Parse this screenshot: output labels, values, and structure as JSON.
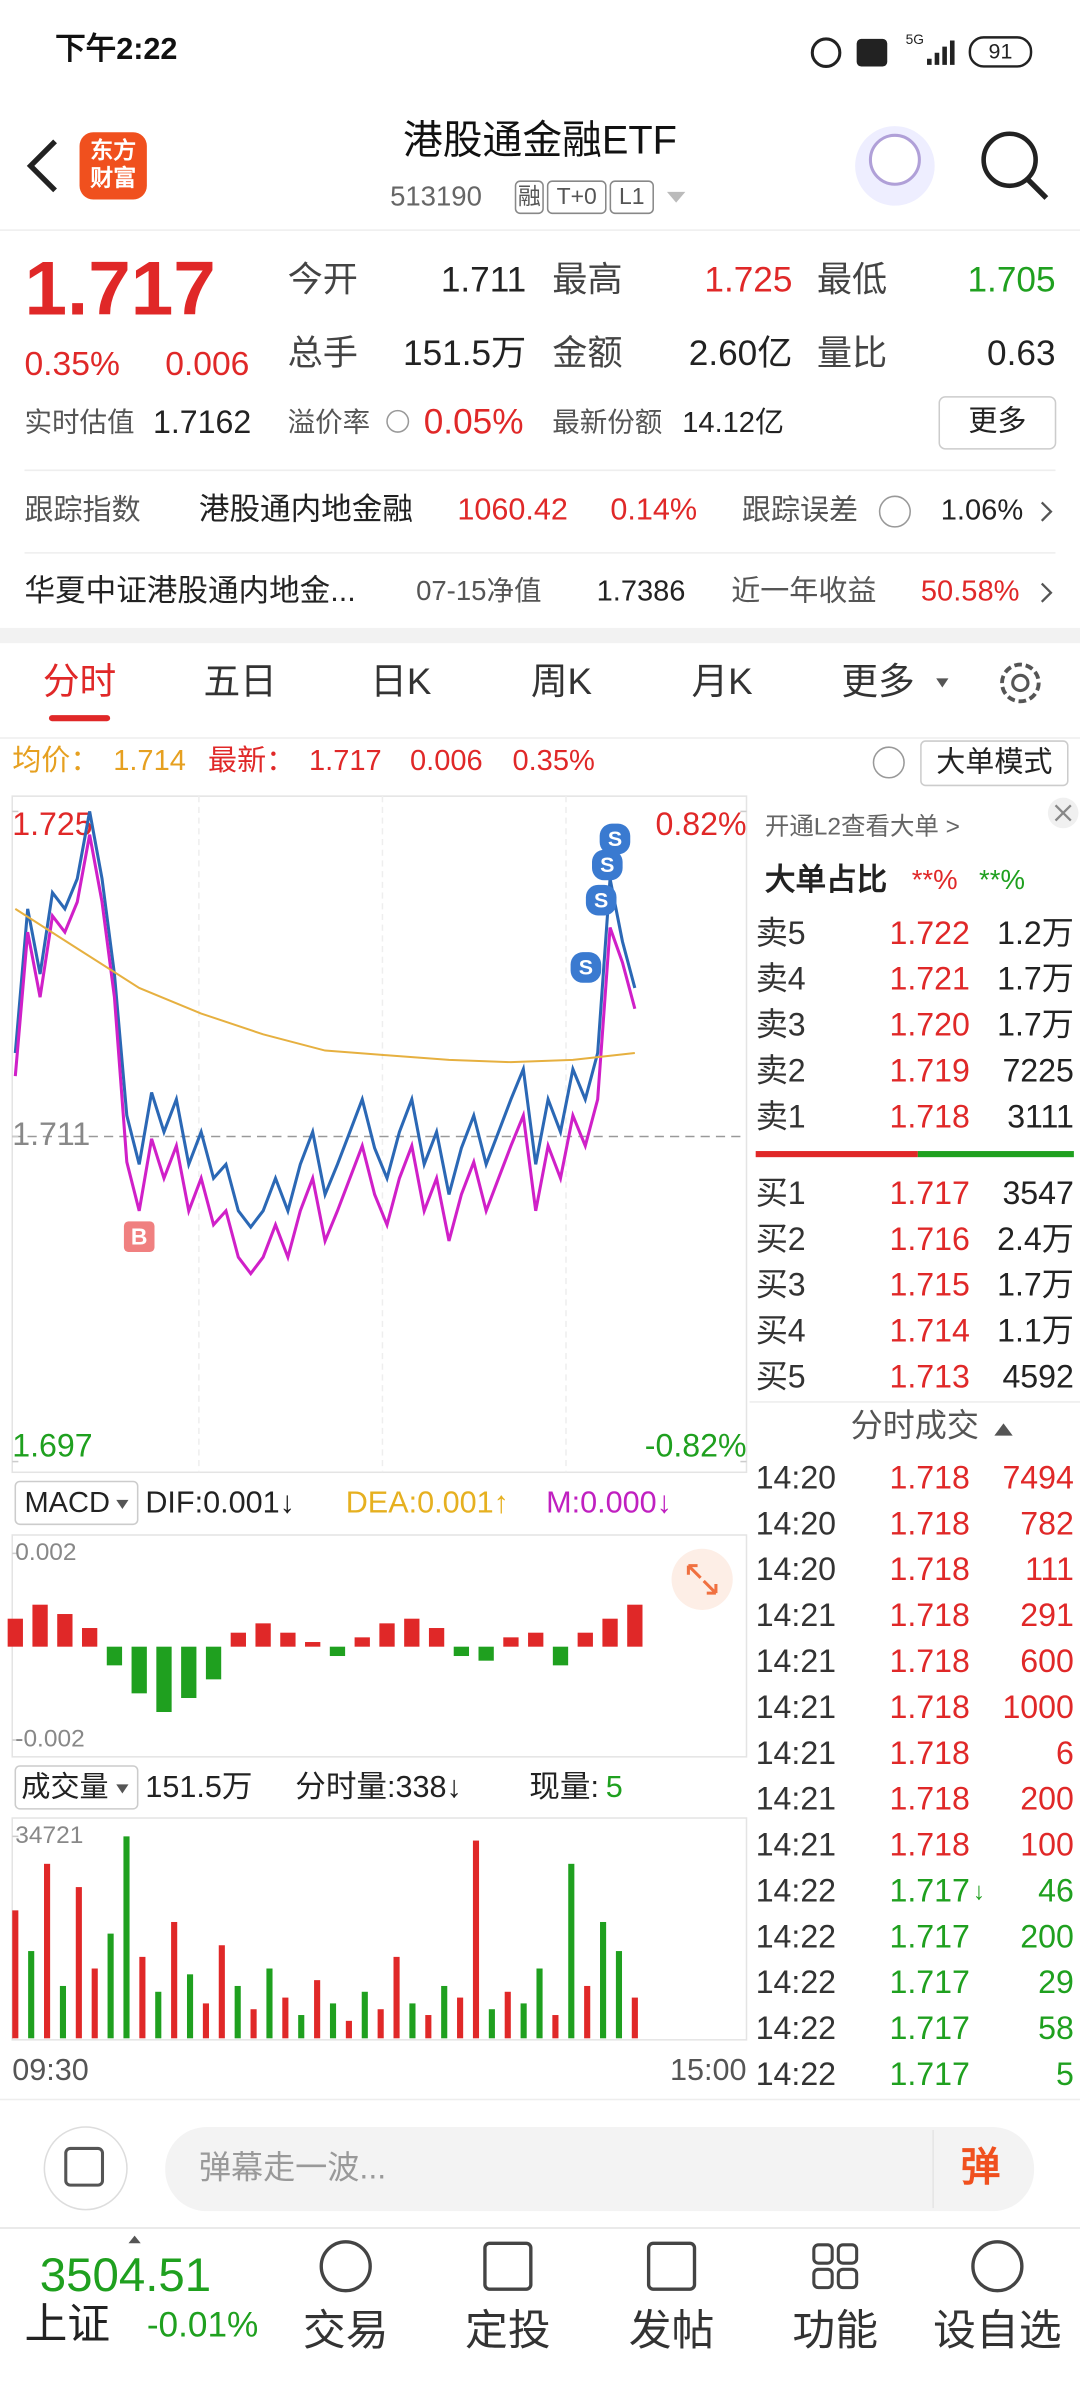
{
  "status": {
    "time": "下午2:22",
    "network": "5G",
    "battery": "91"
  },
  "header": {
    "logo": [
      "东方",
      "财富"
    ],
    "title": "港股通金融ETF",
    "code": "513190",
    "tags": [
      "融",
      "T+0",
      "L1"
    ]
  },
  "quote": {
    "price": "1.717",
    "change_pct": "0.35%",
    "change": "0.006",
    "fields": [
      {
        "label": "今开",
        "value": "1.711"
      },
      {
        "label": "最高",
        "value": "1.725"
      },
      {
        "label": "最低",
        "value": "1.705"
      },
      {
        "label": "总手",
        "value": "151.5万"
      },
      {
        "label": "金额",
        "value": "2.60亿"
      },
      {
        "label": "量比",
        "value": "0.63"
      }
    ],
    "est_label": "实时估值",
    "est": "1.7162",
    "premium_label": "溢价率",
    "premium": "0.05%",
    "shares_label": "最新份额",
    "shares": "14.12亿",
    "more": "更多"
  },
  "tracking": {
    "label": "跟踪指数",
    "index": "港股通内地金融",
    "value": "1060.42",
    "pct": "0.14%",
    "error_label": "跟踪误差",
    "error": "1.06%"
  },
  "fund": {
    "name": "华夏中证港股通内地金...",
    "nav_label": "07-15净值",
    "nav": "1.7386",
    "return_label": "近一年收益",
    "return": "50.58%"
  },
  "tabs": [
    "分时",
    "五日",
    "日K",
    "周K",
    "月K",
    "更多"
  ],
  "summary": {
    "avg_label": "均价：",
    "avg": "1.714",
    "last_label": "最新：",
    "last": "1.717",
    "change": "0.006",
    "pct": "0.35%",
    "mode": "大单模式"
  },
  "chart": {
    "type": "line",
    "ylim": [
      1.697,
      1.725
    ],
    "yticks": [
      1.697,
      1.711,
      1.725
    ],
    "ref": 1.711,
    "y2lim": [
      -0.82,
      0.82
    ],
    "y2ticks": [
      {
        "value": -0.82,
        "label": "-0.82%"
      },
      {
        "value": 0.82,
        "label": "0.82%"
      }
    ],
    "xlabels": [
      "09:30",
      "15:00"
    ],
    "buy_mark": "B",
    "sell_mark": "S",
    "series": [
      {
        "color": "#2b68b5",
        "values": [
          1.7146,
          1.7208,
          1.718,
          1.7215,
          1.7208,
          1.7221,
          1.725,
          1.7221,
          1.718,
          1.7119,
          1.7098,
          1.7129,
          1.7112,
          1.7126,
          1.7098,
          1.7112,
          1.7092,
          1.7098,
          1.7078,
          1.7071,
          1.7078,
          1.7092,
          1.7078,
          1.7098,
          1.7112,
          1.7085,
          1.7098,
          1.7112,
          1.7126,
          1.7105,
          1.7092,
          1.7112,
          1.7126,
          1.7098,
          1.7112,
          1.7085,
          1.7105,
          1.7119,
          1.7098,
          1.7112,
          1.7126,
          1.7139,
          1.7098,
          1.7126,
          1.7112,
          1.7139,
          1.7126,
          1.7146,
          1.7221,
          1.7194,
          1.7174
        ]
      },
      {
        "color": "#d020c8",
        "values": [
          1.7136,
          1.7198,
          1.717,
          1.7205,
          1.7198,
          1.7211,
          1.724,
          1.7211,
          1.717,
          1.7099,
          1.7078,
          1.7109,
          1.7092,
          1.7106,
          1.7078,
          1.7092,
          1.7072,
          1.7078,
          1.7058,
          1.7051,
          1.7058,
          1.7072,
          1.7058,
          1.7078,
          1.7092,
          1.7065,
          1.7078,
          1.7092,
          1.7106,
          1.7085,
          1.7072,
          1.7092,
          1.7106,
          1.7078,
          1.7092,
          1.7065,
          1.7085,
          1.7099,
          1.7078,
          1.7092,
          1.7106,
          1.7119,
          1.7078,
          1.7106,
          1.7092,
          1.7119,
          1.7106,
          1.7126,
          1.72,
          1.7185,
          1.7165
        ]
      },
      {
        "color": "#e6b040",
        "values": [
          1.7208,
          1.7191,
          1.7174,
          1.7163,
          1.7154,
          1.7147,
          1.7145,
          1.7143,
          1.7142,
          1.7143,
          1.7146
        ]
      }
    ]
  },
  "macd": {
    "label": "MACD",
    "dif": "DIF:0.001↓",
    "dea": "DEA:0.001↑",
    "m": "M:0.000↓",
    "ylim": [
      -0.002,
      0.002
    ],
    "yticks": [
      -0.002,
      0.002
    ],
    "values": [
      0.0006,
      0.0009,
      0.0007,
      0.0004,
      -0.0004,
      -0.001,
      -0.0014,
      -0.0011,
      -0.0007,
      0.0003,
      0.0005,
      0.0003,
      0.0001,
      -0.0002,
      0.0002,
      0.0005,
      0.0006,
      0.0004,
      -0.0002,
      -0.0003,
      0.0002,
      0.0003,
      -0.0004,
      0.0003,
      0.0006,
      0.0009
    ]
  },
  "volume": {
    "label": "成交量",
    "total": "151.5万",
    "minute": "分时量:338↓",
    "now_label": "现量:",
    "now": "5",
    "ylim": [
      0,
      34721
    ],
    "yticks": [
      34721
    ],
    "values": [
      22000,
      15000,
      30000,
      9000,
      26000,
      12000,
      18000,
      34721,
      14000,
      8000,
      20000,
      11000,
      6000,
      16000,
      9000,
      5000,
      12000,
      7000,
      4000,
      10000,
      6000,
      3000,
      8000,
      5000,
      14000,
      6000,
      4000,
      9000,
      7000,
      34000,
      5000,
      8000,
      6000,
      12000,
      4000,
      30000,
      9000,
      20000,
      15000,
      7000
    ],
    "colors": [
      "#e02828",
      "#1fa01f",
      "#e02828",
      "#1fa01f",
      "#e02828",
      "#e02828",
      "#1fa01f",
      "#1fa01f",
      "#e02828",
      "#1fa01f",
      "#e02828",
      "#1fa01f",
      "#e02828",
      "#e02828",
      "#1fa01f",
      "#e02828",
      "#1fa01f",
      "#e02828",
      "#1fa01f",
      "#e02828",
      "#1fa01f",
      "#e02828",
      "#1fa01f",
      "#e02828",
      "#e02828",
      "#1fa01f",
      "#e02828",
      "#1fa01f",
      "#e02828",
      "#e02828",
      "#1fa01f",
      "#e02828",
      "#1fa01f",
      "#1fa01f",
      "#e02828",
      "#1fa01f",
      "#e02828",
      "#1fa01f",
      "#1fa01f",
      "#e02828"
    ]
  },
  "orderbook": {
    "l2": "开通L2查看大单 >",
    "ratio_label": "大单占比",
    "ratio_buy": "**%",
    "ratio_sell": "**%",
    "asks": [
      [
        "卖5",
        "1.722",
        "1.2万"
      ],
      [
        "卖4",
        "1.721",
        "1.7万"
      ],
      [
        "卖3",
        "1.720",
        "1.7万"
      ],
      [
        "卖2",
        "1.719",
        "7225"
      ],
      [
        "卖1",
        "1.718",
        "3111"
      ]
    ],
    "bids": [
      [
        "买1",
        "1.717",
        "3547"
      ],
      [
        "买2",
        "1.716",
        "2.4万"
      ],
      [
        "买3",
        "1.715",
        "1.7万"
      ],
      [
        "买4",
        "1.714",
        "1.1万"
      ],
      [
        "买5",
        "1.713",
        "4592"
      ]
    ],
    "trades_title": "分时成交",
    "trades": [
      {
        "time": "14:20",
        "price": "1.718",
        "volume": "7494",
        "color": "#e02828"
      },
      {
        "time": "14:20",
        "price": "1.718",
        "volume": "782",
        "color": "#e02828"
      },
      {
        "time": "14:20",
        "price": "1.718",
        "volume": "111",
        "color": "#e02828"
      },
      {
        "time": "14:21",
        "price": "1.718",
        "volume": "291",
        "color": "#e02828"
      },
      {
        "time": "14:21",
        "price": "1.718",
        "volume": "600",
        "color": "#e02828"
      },
      {
        "time": "14:21",
        "price": "1.718",
        "volume": "1000",
        "color": "#e02828"
      },
      {
        "time": "14:21",
        "price": "1.718",
        "volume": "6",
        "color": "#e02828"
      },
      {
        "time": "14:21",
        "price": "1.718",
        "volume": "200",
        "color": "#e02828"
      },
      {
        "time": "14:21",
        "price": "1.718",
        "volume": "100",
        "color": "#e02828"
      },
      {
        "time": "14:22",
        "price": "1.717",
        "flag": "↓",
        "volume": "46",
        "color": "#1fa01f"
      },
      {
        "time": "14:22",
        "price": "1.717",
        "volume": "200",
        "color": "#1fa01f"
      },
      {
        "time": "14:22",
        "price": "1.717",
        "volume": "29",
        "color": "#1fa01f"
      },
      {
        "time": "14:22",
        "price": "1.717",
        "volume": "58",
        "color": "#1fa01f"
      },
      {
        "time": "14:22",
        "price": "1.717",
        "volume": "5",
        "color": "#1fa01f"
      }
    ]
  },
  "comment": {
    "placeholder": "弹幕走一波...",
    "button": "弹"
  },
  "bottom": {
    "index_value": "3504.51",
    "index_name": "上证",
    "index_pct": "-0.01%",
    "nav": [
      "交易",
      "定投",
      "发帖",
      "功能",
      "设自选"
    ]
  }
}
